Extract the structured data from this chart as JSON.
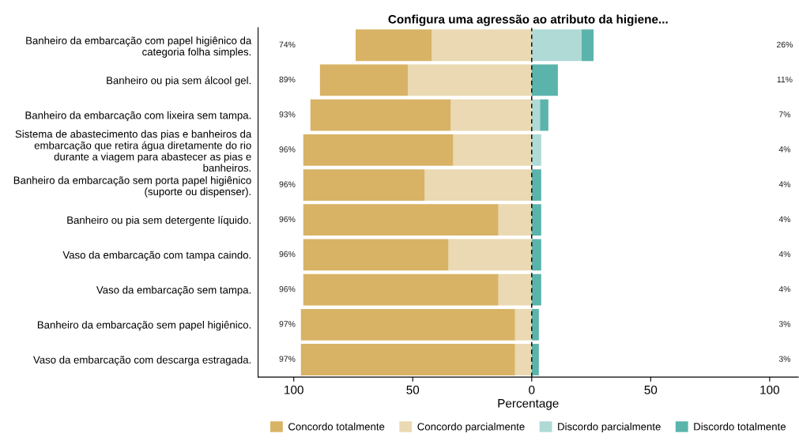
{
  "chart_data": {
    "type": "bar",
    "orientation": "horizontal",
    "stacked": true,
    "title": "Configura uma agressão ao atributo da higiene...",
    "xlabel": "Percentage",
    "categories": [
      "Banheiro da embarcação com papel higiênico da\ncategoria folha simples.",
      "Banheiro ou pia sem álcool gel.",
      "Banheiro da embarcação com lixeira sem tampa.",
      "Sistema de abastecimento das pias e banheiros da\nembarcação que retira água diretamente do rio\ndurante a viagem para abastecer as pias e\nbanheiros.",
      "Banheiro da embarcação sem porta papel higiênico\n(suporte ou dispenser).",
      "Banheiro ou pia sem detergente líquido.",
      "Vaso da embarcação com tampa caindo.",
      "Vaso da embarcação sem tampa.",
      "Banheiro da embarcação sem papel higiênico.",
      "Vaso da embarcação com descarga estragada."
    ],
    "series": [
      {
        "name": "Concordo parcialmente",
        "color": "#ead9b2",
        "values": [
          -42,
          -52,
          -34,
          -33,
          -45,
          -14,
          -35,
          -14,
          -7,
          -7
        ]
      },
      {
        "name": "Concordo totalmente",
        "color": "#d8b365",
        "values": [
          -32,
          -37,
          -59,
          -63,
          -51,
          -82,
          -61,
          -82,
          -90,
          -90
        ]
      },
      {
        "name": "Discordo parcialmente",
        "color": "#afdad6",
        "values": [
          21,
          0,
          3.5,
          4,
          0,
          0,
          0,
          0,
          0,
          0
        ]
      },
      {
        "name": "Discordo totalmente",
        "color": "#5bb4ac",
        "values": [
          5,
          11,
          3.5,
          0,
          4,
          4,
          4,
          4,
          3,
          3
        ]
      }
    ],
    "annotations": [
      "74%",
      "89%",
      "93%",
      "96%",
      "96%",
      "96%",
      "96%",
      "96%",
      "97%",
      "97%",
      "26%",
      "11%",
      "7%",
      "4%",
      "4%",
      "4%",
      "4%",
      "4%",
      "3%",
      "3%"
    ],
    "xlim": [
      -115,
      112
    ],
    "xticks": [
      {
        "value": -100,
        "label": "100"
      },
      {
        "value": -50,
        "label": "50"
      },
      0,
      50,
      100
    ],
    "ref_lines": [
      {
        "axis": "x",
        "value": 0,
        "color": "#000000",
        "line_style": "dashed"
      }
    ],
    "grid": false,
    "legend": "bottom"
  }
}
